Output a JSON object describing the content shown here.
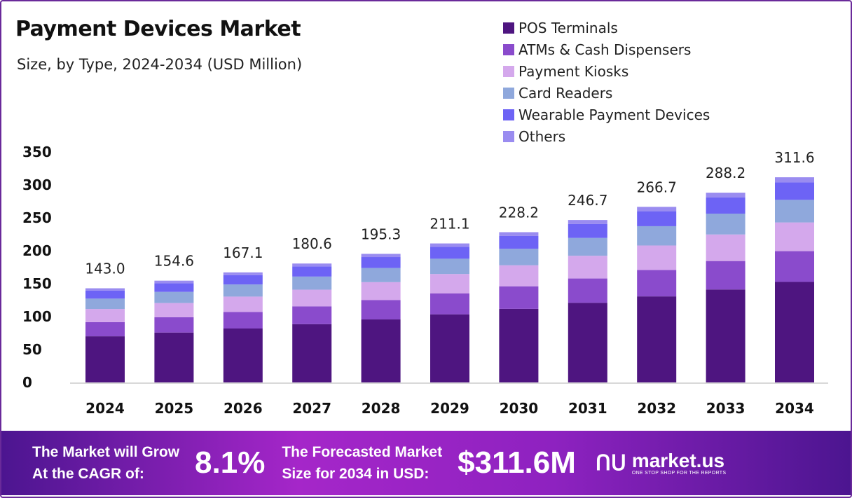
{
  "chart_data": {
    "type": "bar",
    "stacked": true,
    "title": "Payment Devices Market",
    "subtitle": "Size, by Type, 2024-2034 (USD Million)",
    "categories": [
      "2024",
      "2025",
      "2026",
      "2027",
      "2028",
      "2029",
      "2030",
      "2031",
      "2032",
      "2033",
      "2034"
    ],
    "totals": [
      "143.0",
      "154.6",
      "167.1",
      "180.6",
      "195.3",
      "211.1",
      "228.2",
      "246.7",
      "266.7",
      "288.2",
      "311.6"
    ],
    "ylim": [
      0,
      350
    ],
    "yticks": [
      "0",
      "50",
      "100",
      "150",
      "200",
      "250",
      "300",
      "350"
    ],
    "grid": false,
    "legend_position": "top-right",
    "series": [
      {
        "name": "POS Terminals",
        "color": "#4e1580",
        "values": [
          70.1,
          75.8,
          81.9,
          88.5,
          95.7,
          103.4,
          111.8,
          120.9,
          130.7,
          141.2,
          152.7
        ]
      },
      {
        "name": "ATMs & Cash Dispensers",
        "color": "#8a4bcc",
        "values": [
          21.5,
          23.2,
          25.1,
          27.1,
          29.3,
          31.7,
          34.2,
          37.0,
          40.0,
          43.2,
          46.7
        ]
      },
      {
        "name": "Payment Kiosks",
        "color": "#d4a8ec",
        "values": [
          20.0,
          21.6,
          23.4,
          25.3,
          27.3,
          29.6,
          31.9,
          34.5,
          37.3,
          40.3,
          43.6
        ]
      },
      {
        "name": "Card Readers",
        "color": "#8fa8dc",
        "values": [
          15.7,
          17.0,
          18.4,
          19.9,
          21.5,
          23.2,
          25.1,
          27.1,
          29.3,
          31.7,
          34.3
        ]
      },
      {
        "name": "Wearable Payment Devices",
        "color": "#6d63f5",
        "values": [
          12.2,
          13.1,
          14.2,
          15.4,
          16.6,
          17.9,
          19.4,
          21.0,
          22.7,
          24.5,
          26.5
        ]
      },
      {
        "name": "Others",
        "color": "#9a8cf0",
        "values": [
          3.5,
          3.9,
          4.1,
          4.4,
          4.9,
          5.3,
          5.8,
          6.2,
          6.7,
          7.3,
          7.8
        ]
      }
    ]
  },
  "footer": {
    "cagr_text_1": "The Market will Grow",
    "cagr_text_2": "At the CAGR of:",
    "cagr_value": "8.1%",
    "forecast_text_1": "The Forecasted Market",
    "forecast_text_2": "Size for 2034 in USD:",
    "forecast_value": "$311.6M",
    "brand": "market.us",
    "brand_tagline": "ONE STOP SHOP FOR THE REPORTS"
  }
}
